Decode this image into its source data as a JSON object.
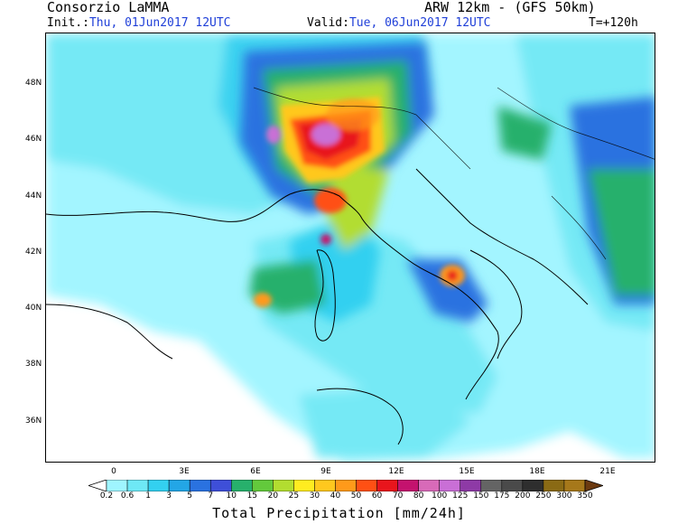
{
  "header": {
    "org": "Consorzio LaMMA",
    "model": "ARW 12km - (GFS 50km)",
    "init_label": "Init.:",
    "init_value": "Thu, 01Jun2017 12UTC",
    "valid_label": "Valid:",
    "valid_value": "Tue, 06Jun2017 12UTC",
    "lead": "T=+120h"
  },
  "axes": {
    "lat_ticks": [
      "48N",
      "46N",
      "44N",
      "42N",
      "40N",
      "38N",
      "36N"
    ],
    "lon_ticks": [
      "0",
      "3E",
      "6E",
      "9E",
      "12E",
      "15E",
      "18E",
      "21E"
    ]
  },
  "colorbar": {
    "labels": [
      "0.2",
      "0.6",
      "1",
      "3",
      "5",
      "7",
      "10",
      "15",
      "20",
      "25",
      "30",
      "40",
      "50",
      "60",
      "70",
      "80",
      "100",
      "125",
      "150",
      "175",
      "200",
      "250",
      "300",
      "350"
    ],
    "colors": [
      "#9ff5ff",
      "#6ee8f5",
      "#33d0f0",
      "#23a6e6",
      "#2a72e0",
      "#3e4fd8",
      "#27b06c",
      "#63c93c",
      "#b2dd30",
      "#ffec20",
      "#ffc81e",
      "#ff9a1a",
      "#ff5014",
      "#e8151c",
      "#c4126e",
      "#d86ab8",
      "#c96fd6",
      "#8e3aa6",
      "#646464",
      "#4a4a4a",
      "#2e2e2e",
      "#8a6a14",
      "#a6781a",
      "#6b3a10"
    ],
    "title": "Total Precipitation [mm/24h]"
  }
}
